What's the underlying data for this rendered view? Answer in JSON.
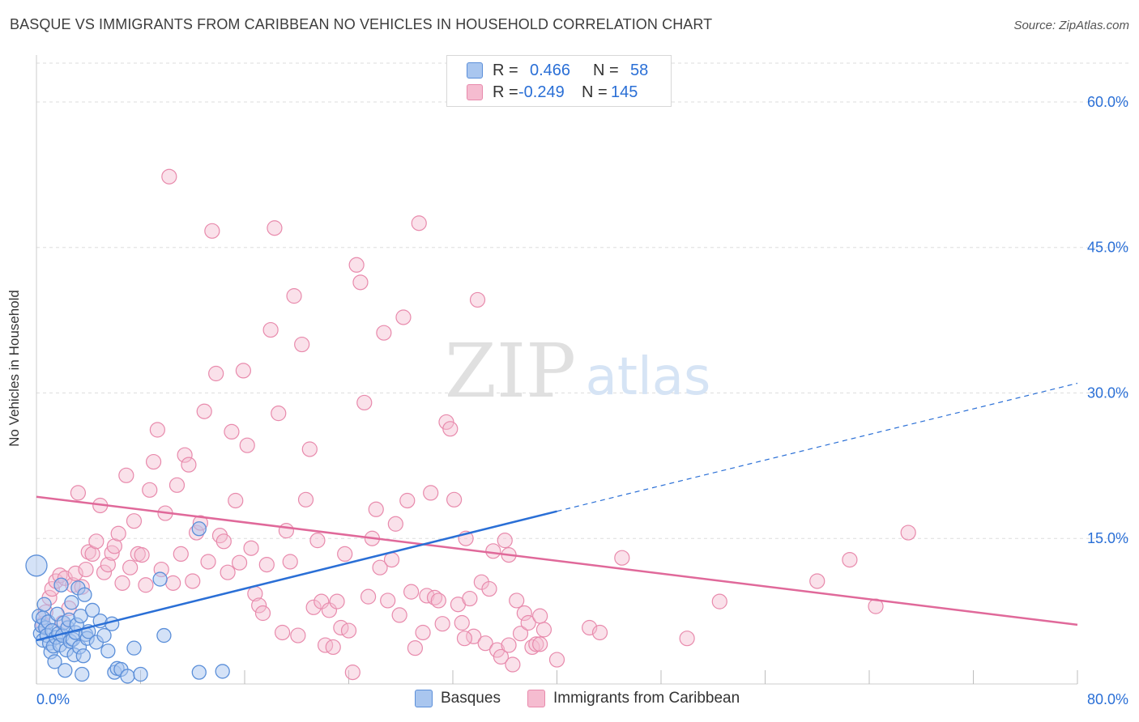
{
  "title": "BASQUE VS IMMIGRANTS FROM CARIBBEAN NO VEHICLES IN HOUSEHOLD CORRELATION CHART",
  "source": "Source: ZipAtlas.com",
  "watermark": {
    "zip": "ZIP",
    "atlas": "atlas"
  },
  "colors": {
    "blue_fill": "#a9c6ef",
    "blue_stroke": "#5b8fd9",
    "blue_line": "#2a6fd6",
    "pink_fill": "#f5bcd0",
    "pink_stroke": "#e88aac",
    "pink_line": "#e0699a",
    "value_text": "#2a6fd6",
    "grid": "#dddddd"
  },
  "legend": {
    "rows": [
      {
        "r_label": "R =",
        "r_value": "0.466",
        "n_label": "N =",
        "n_value": "58",
        "color": "#a9c6ef"
      },
      {
        "r_label": "R =",
        "r_value": "-0.249",
        "n_label": "N =",
        "n_value": "145",
        "color": "#f5bcd0"
      }
    ]
  },
  "bottom_legend": {
    "items": [
      {
        "label": "Basques",
        "color": "#a9c6ef"
      },
      {
        "label": "Immigrants from Caribbean",
        "color": "#f5bcd0"
      }
    ]
  },
  "chart_data": {
    "type": "scatter",
    "title": "BASQUE VS IMMIGRANTS FROM CARIBBEAN NO VEHICLES IN HOUSEHOLD CORRELATION CHART",
    "xlabel": "",
    "ylabel": "No Vehicles in Household",
    "xlim": [
      0,
      80
    ],
    "ylim": [
      0,
      64
    ],
    "x_tick_labels": [
      "0.0%",
      "80.0%"
    ],
    "y_ticks": [
      15,
      30,
      45,
      60
    ],
    "y_tick_labels": [
      "15.0%",
      "30.0%",
      "45.0%",
      "60.0%"
    ],
    "grid": true,
    "legend_position": "top-center",
    "series": [
      {
        "name": "Basques",
        "r": 0.466,
        "n": 58,
        "trend": {
          "x0": 0,
          "y0": 4.5,
          "x1": 40,
          "y1": 17.8,
          "dash_x1": 80,
          "dash_y1": 31.0
        },
        "points": [
          [
            0.0,
            12.2
          ],
          [
            0.2,
            7.0
          ],
          [
            0.3,
            5.2
          ],
          [
            0.4,
            6.0
          ],
          [
            0.5,
            6.8
          ],
          [
            0.5,
            4.5
          ],
          [
            0.6,
            8.2
          ],
          [
            0.7,
            5.8
          ],
          [
            0.8,
            5.0
          ],
          [
            0.9,
            6.4
          ],
          [
            1.0,
            4.2
          ],
          [
            1.1,
            3.3
          ],
          [
            1.2,
            5.5
          ],
          [
            1.3,
            3.9
          ],
          [
            1.4,
            2.3
          ],
          [
            1.5,
            4.8
          ],
          [
            1.6,
            7.2
          ],
          [
            1.7,
            5.2
          ],
          [
            1.8,
            4.0
          ],
          [
            1.9,
            10.2
          ],
          [
            2.0,
            5.0
          ],
          [
            2.1,
            6.3
          ],
          [
            2.2,
            1.4
          ],
          [
            2.3,
            3.5
          ],
          [
            2.4,
            5.8
          ],
          [
            2.5,
            6.6
          ],
          [
            2.6,
            4.4
          ],
          [
            2.7,
            8.4
          ],
          [
            2.8,
            4.6
          ],
          [
            2.9,
            3.0
          ],
          [
            3.0,
            5.3
          ],
          [
            3.1,
            6.1
          ],
          [
            3.2,
            9.9
          ],
          [
            3.3,
            3.8
          ],
          [
            3.4,
            7.0
          ],
          [
            3.5,
            1.0
          ],
          [
            3.6,
            2.9
          ],
          [
            3.7,
            9.2
          ],
          [
            3.8,
            5.1
          ],
          [
            3.9,
            4.7
          ],
          [
            4.0,
            5.4
          ],
          [
            4.3,
            7.6
          ],
          [
            4.6,
            4.3
          ],
          [
            4.9,
            6.5
          ],
          [
            5.2,
            5.0
          ],
          [
            5.5,
            3.4
          ],
          [
            5.8,
            6.2
          ],
          [
            6.0,
            1.2
          ],
          [
            6.2,
            1.6
          ],
          [
            6.5,
            1.5
          ],
          [
            7.0,
            0.8
          ],
          [
            7.5,
            3.7
          ],
          [
            8.0,
            1.0
          ],
          [
            9.5,
            10.8
          ],
          [
            9.8,
            5.0
          ],
          [
            12.5,
            16.0
          ],
          [
            12.5,
            1.2
          ],
          [
            14.3,
            1.3
          ]
        ]
      },
      {
        "name": "Immigrants from Caribbean",
        "r": -0.249,
        "n": 145,
        "trend": {
          "x0": 0,
          "y0": 19.3,
          "x1": 80,
          "y1": 6.1
        },
        "points": [
          [
            0.5,
            6.2
          ],
          [
            0.7,
            7.4
          ],
          [
            1.0,
            8.9
          ],
          [
            1.2,
            9.8
          ],
          [
            1.5,
            10.6
          ],
          [
            1.8,
            11.2
          ],
          [
            2.0,
            6.3
          ],
          [
            2.2,
            10.9
          ],
          [
            2.5,
            7.8
          ],
          [
            2.8,
            10.2
          ],
          [
            3.0,
            11.4
          ],
          [
            3.2,
            19.7
          ],
          [
            3.5,
            10.0
          ],
          [
            3.8,
            11.8
          ],
          [
            4.0,
            13.6
          ],
          [
            4.3,
            13.4
          ],
          [
            4.6,
            14.7
          ],
          [
            4.9,
            18.4
          ],
          [
            5.2,
            11.5
          ],
          [
            5.5,
            12.3
          ],
          [
            5.8,
            13.5
          ],
          [
            6.0,
            14.2
          ],
          [
            6.3,
            15.5
          ],
          [
            6.6,
            10.4
          ],
          [
            6.9,
            21.5
          ],
          [
            7.2,
            12.0
          ],
          [
            7.5,
            16.8
          ],
          [
            7.8,
            13.4
          ],
          [
            8.1,
            13.3
          ],
          [
            8.4,
            10.2
          ],
          [
            8.7,
            20.0
          ],
          [
            9.0,
            22.9
          ],
          [
            9.3,
            26.2
          ],
          [
            9.6,
            11.8
          ],
          [
            9.9,
            17.6
          ],
          [
            10.2,
            52.3
          ],
          [
            10.5,
            10.4
          ],
          [
            10.8,
            20.5
          ],
          [
            11.1,
            13.4
          ],
          [
            11.4,
            23.6
          ],
          [
            11.7,
            22.6
          ],
          [
            12.0,
            10.6
          ],
          [
            12.3,
            15.6
          ],
          [
            12.6,
            16.6
          ],
          [
            12.9,
            28.1
          ],
          [
            13.2,
            12.6
          ],
          [
            13.5,
            46.7
          ],
          [
            13.8,
            32.0
          ],
          [
            14.1,
            15.3
          ],
          [
            14.4,
            14.7
          ],
          [
            14.7,
            11.5
          ],
          [
            15.0,
            26.0
          ],
          [
            15.3,
            18.9
          ],
          [
            15.6,
            12.5
          ],
          [
            15.9,
            32.3
          ],
          [
            16.2,
            24.6
          ],
          [
            16.5,
            14.0
          ],
          [
            16.8,
            9.3
          ],
          [
            17.1,
            8.1
          ],
          [
            17.4,
            7.3
          ],
          [
            17.7,
            12.3
          ],
          [
            18.0,
            36.5
          ],
          [
            18.3,
            47.0
          ],
          [
            18.6,
            27.9
          ],
          [
            18.9,
            5.3
          ],
          [
            19.2,
            15.8
          ],
          [
            19.5,
            12.6
          ],
          [
            19.8,
            40.0
          ],
          [
            20.1,
            5.0
          ],
          [
            20.4,
            35.0
          ],
          [
            20.7,
            19.0
          ],
          [
            21.0,
            24.2
          ],
          [
            21.3,
            7.9
          ],
          [
            21.6,
            14.8
          ],
          [
            21.9,
            8.5
          ],
          [
            22.2,
            4.0
          ],
          [
            22.5,
            7.6
          ],
          [
            22.8,
            3.8
          ],
          [
            23.1,
            8.5
          ],
          [
            23.4,
            5.8
          ],
          [
            23.7,
            13.4
          ],
          [
            24.0,
            5.5
          ],
          [
            24.3,
            1.2
          ],
          [
            24.6,
            43.2
          ],
          [
            24.9,
            41.4
          ],
          [
            25.2,
            29.0
          ],
          [
            25.5,
            9.0
          ],
          [
            25.8,
            15.0
          ],
          [
            26.1,
            18.0
          ],
          [
            26.4,
            12.0
          ],
          [
            26.7,
            36.2
          ],
          [
            27.0,
            8.6
          ],
          [
            27.3,
            12.8
          ],
          [
            27.6,
            16.5
          ],
          [
            27.9,
            7.1
          ],
          [
            28.2,
            37.8
          ],
          [
            28.5,
            18.9
          ],
          [
            28.8,
            9.5
          ],
          [
            29.1,
            3.7
          ],
          [
            29.4,
            47.5
          ],
          [
            29.7,
            5.3
          ],
          [
            30.0,
            9.1
          ],
          [
            30.3,
            19.7
          ],
          [
            30.6,
            8.9
          ],
          [
            30.9,
            8.6
          ],
          [
            31.2,
            6.2
          ],
          [
            31.5,
            27.0
          ],
          [
            31.8,
            26.3
          ],
          [
            32.1,
            19.0
          ],
          [
            32.4,
            8.2
          ],
          [
            32.7,
            6.3
          ],
          [
            33.0,
            15.0
          ],
          [
            33.3,
            8.8
          ],
          [
            33.6,
            4.9
          ],
          [
            33.9,
            39.6
          ],
          [
            34.2,
            10.5
          ],
          [
            34.5,
            4.2
          ],
          [
            34.8,
            9.8
          ],
          [
            35.1,
            13.7
          ],
          [
            35.4,
            3.5
          ],
          [
            35.7,
            2.8
          ],
          [
            36.0,
            14.8
          ],
          [
            36.3,
            4.0
          ],
          [
            36.6,
            2.0
          ],
          [
            36.9,
            8.6
          ],
          [
            37.2,
            5.2
          ],
          [
            37.5,
            7.3
          ],
          [
            37.8,
            6.3
          ],
          [
            38.1,
            3.8
          ],
          [
            38.4,
            4.1
          ],
          [
            38.7,
            4.1
          ],
          [
            39.0,
            5.6
          ],
          [
            40.0,
            2.5
          ],
          [
            42.5,
            5.8
          ],
          [
            43.3,
            5.3
          ],
          [
            45.0,
            13.0
          ],
          [
            50.0,
            4.7
          ],
          [
            52.5,
            8.5
          ],
          [
            60.0,
            10.6
          ],
          [
            62.5,
            12.8
          ],
          [
            64.5,
            8.0
          ],
          [
            67.0,
            15.6
          ],
          [
            32.9,
            4.7
          ],
          [
            36.3,
            13.3
          ],
          [
            38.7,
            7.0
          ]
        ]
      }
    ]
  }
}
